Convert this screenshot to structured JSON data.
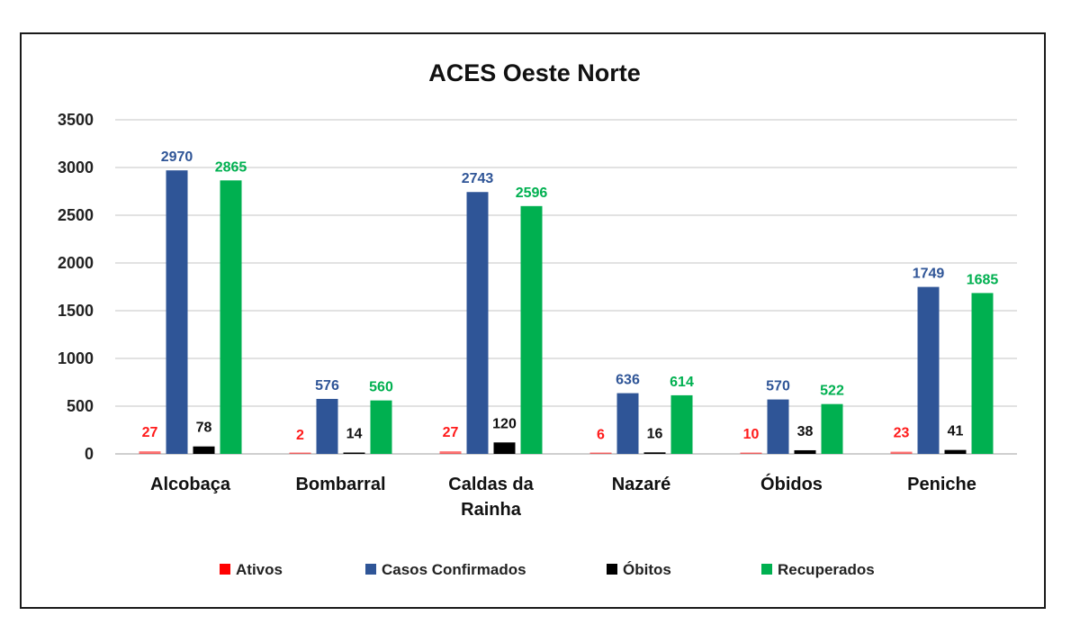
{
  "chart_data": {
    "type": "bar",
    "title": "ACES Oeste Norte",
    "categories": [
      [
        "Alcobaça"
      ],
      [
        "Bombarral"
      ],
      [
        "Caldas da",
        "Rainha"
      ],
      [
        "Nazaré"
      ],
      [
        "Óbidos"
      ],
      [
        "Peniche"
      ]
    ],
    "series": [
      {
        "name": "Ativos",
        "color": "#ff0000",
        "label_color": "#ff1a1a",
        "values": [
          27,
          2,
          27,
          6,
          10,
          23
        ]
      },
      {
        "name": "Casos Confirmados",
        "color": "#2f5597",
        "label_color": "#2f5597",
        "values": [
          2970,
          576,
          2743,
          636,
          570,
          1749
        ]
      },
      {
        "name": "Óbitos",
        "color": "#000000",
        "label_color": "#111111",
        "values": [
          78,
          14,
          120,
          16,
          38,
          41
        ]
      },
      {
        "name": "Recuperados",
        "color": "#00b050",
        "label_color": "#00b050",
        "values": [
          2865,
          560,
          2596,
          614,
          522,
          1685
        ]
      }
    ],
    "ylim": [
      0,
      3500
    ],
    "yticks": [
      0,
      500,
      1000,
      1500,
      2000,
      2500,
      3000,
      3500
    ],
    "grid": true,
    "legend_position": "bottom",
    "xlabel": "",
    "ylabel": ""
  }
}
